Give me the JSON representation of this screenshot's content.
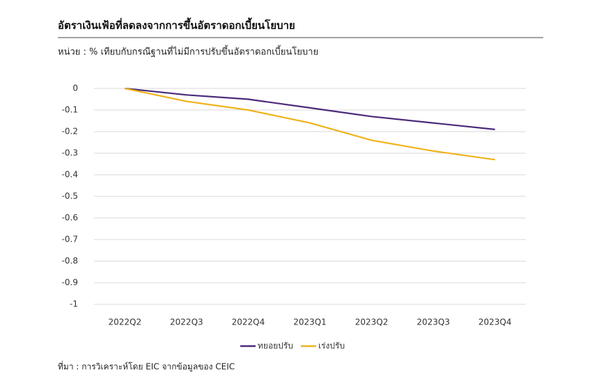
{
  "chart_data": {
    "type": "line",
    "title": "อัตราเงินเฟ้อที่ลดลงจากการขึ้นอัตราดอกเบี้ยนโยบาย",
    "subtitle": "หน่วย : % เทียบกับกรณีฐานที่ไม่มีการปรับขึ้นอัตราดอกเบี้ยนโยบาย",
    "source": "ที่มา : การวิเคราะห์โดย EIC จากข้อมูลของ CEIC",
    "categories": [
      "2022Q2",
      "2022Q3",
      "2022Q4",
      "2023Q1",
      "2023Q2",
      "2023Q3",
      "2023Q4"
    ],
    "series": [
      {
        "name": "ทยอยปรับ",
        "color": "#4b2a7b",
        "values": [
          0,
          -0.03,
          -0.05,
          -0.09,
          -0.13,
          -0.16,
          -0.19
        ]
      },
      {
        "name": "เร่งปรับ",
        "color": "#f0b21a",
        "values": [
          0,
          -0.06,
          -0.1,
          -0.16,
          -0.24,
          -0.29,
          -0.33
        ]
      }
    ],
    "ylim": [
      -1,
      0
    ],
    "yticks": [
      0,
      -0.1,
      -0.2,
      -0.3,
      -0.4,
      -0.5,
      -0.6,
      -0.7,
      -0.8,
      -0.9,
      -1
    ],
    "grid": true,
    "legend": "bottom"
  }
}
